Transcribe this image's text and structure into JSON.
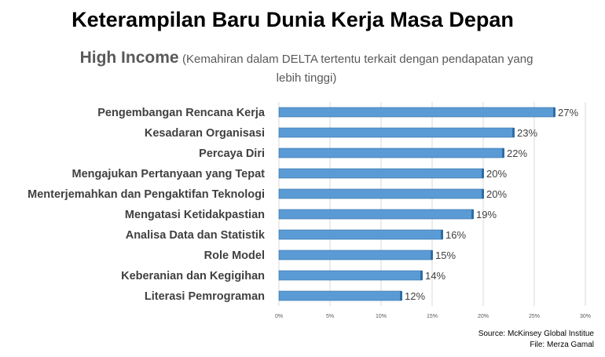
{
  "title": "Keterampilan Baru Dunia Kerja Masa Depan",
  "subtitle": {
    "strong": "High Income",
    "rest": "(Kemahiran dalam DELTA tertentu terkait dengan pendapatan yang lebih tinggi)"
  },
  "source_lines": [
    "Source: McKinsey Global Institue",
    "File: Merza Gamal"
  ],
  "colors": {
    "bar": "#5b9bd5",
    "bar_edge": "#2e6da4",
    "grid": "#d9d9d9",
    "text": "#404040"
  },
  "chart_data": {
    "type": "bar",
    "orientation": "horizontal",
    "categories": [
      "Pengembangan Rencana Kerja",
      "Kesadaran Organisasi",
      "Percaya Diri",
      "Mengajukan Pertanyaan yang Tepat",
      "Menterjemahkan dan Pengaktifan Teknologi",
      "Mengatasi Ketidakpastian",
      "Analisa Data dan Statistik",
      "Role Model",
      "Keberanian dan Kegigihan",
      "Literasi Pemrograman"
    ],
    "values": [
      27,
      23,
      22,
      20,
      20,
      19,
      16,
      15,
      14,
      12
    ],
    "value_labels": [
      "27%",
      "23%",
      "22%",
      "20%",
      "20%",
      "19%",
      "16%",
      "15%",
      "14%",
      "12%"
    ],
    "xlim": [
      0,
      30
    ],
    "xticks": [
      0,
      5,
      10,
      15,
      20,
      25,
      30
    ],
    "xtick_labels": [
      "0%",
      "5%",
      "10%",
      "15%",
      "20%",
      "25%",
      "30%"
    ],
    "grid": true,
    "legend": "none"
  }
}
